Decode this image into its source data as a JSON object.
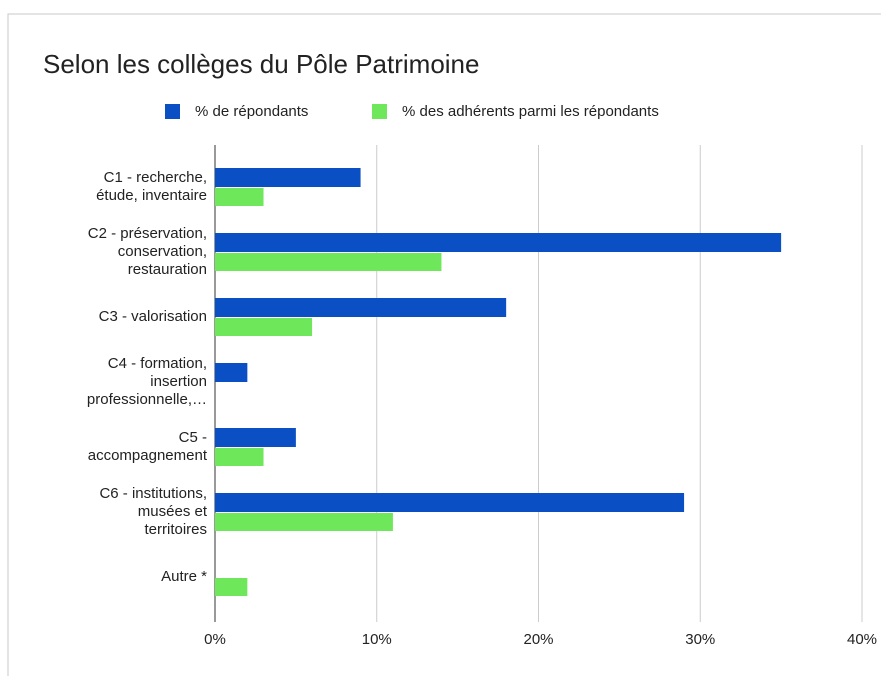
{
  "chart_data": {
    "type": "bar",
    "orientation": "horizontal",
    "title": "Selon les collèges du Pôle Patrimoine",
    "categories": [
      "C1 - recherche,\nétude, inventaire",
      "C2 - préservation,\nconservation,\nrestauration",
      "C3 - valorisation",
      "C4 - formation,\ninsertion\nprofessionnelle,…",
      "C5 -\naccompagnement",
      "C6 - institutions,\nmusées et\nterritoires",
      "Autre *"
    ],
    "series": [
      {
        "name": "% de répondants",
        "color": "#0b4fc4",
        "values": [
          9,
          35,
          18,
          2,
          5,
          29,
          0
        ]
      },
      {
        "name": "% des adhérents parmi les répondants",
        "color": "#6ee85a",
        "values": [
          3,
          14,
          6,
          0,
          3,
          11,
          2
        ]
      }
    ],
    "xlim": [
      0,
      40
    ],
    "xticks": [
      {
        "value": 0,
        "label": "0%"
      },
      {
        "value": 10,
        "label": "10%"
      },
      {
        "value": 20,
        "label": "20%"
      },
      {
        "value": 30,
        "label": "30%"
      },
      {
        "value": 40,
        "label": "40%"
      }
    ],
    "grid": true,
    "legend": "top"
  }
}
